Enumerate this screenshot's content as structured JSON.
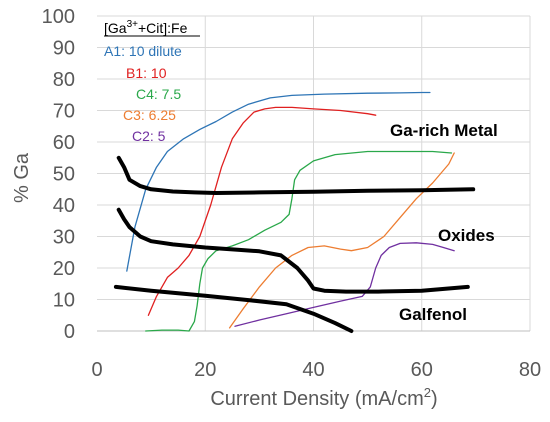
{
  "chart_data": {
    "type": "line",
    "xlabel": "Current Density (mA/cm",
    "xlabel_sup": "2",
    "xlabel_suffix": ")",
    "ylabel": "% Ga",
    "xlim": [
      0,
      80
    ],
    "ylim": [
      0,
      100
    ],
    "xticks": [
      0,
      20,
      40,
      60,
      80
    ],
    "yticks": [
      0,
      10,
      20,
      30,
      40,
      50,
      60,
      70,
      80,
      90,
      100
    ],
    "grid": true,
    "legend": {
      "title_pre": "[Ga",
      "title_sup": "3+",
      "title_post": "+Cit]:Fe",
      "placement": "top-left",
      "entries": [
        "A1: 10 dilute",
        "B1: 10",
        "C4: 7.5",
        "C3: 6.25",
        "C2: 5"
      ]
    },
    "series": [
      {
        "name": "A1: 10 dilute",
        "color": "#2e75b6",
        "x": [
          5.5,
          7,
          9,
          11,
          13,
          16,
          19,
          22,
          25,
          28,
          32,
          36,
          42,
          50,
          56,
          60,
          61.5
        ],
        "y": [
          19,
          33,
          45,
          52,
          57,
          61,
          64,
          66.5,
          69.5,
          72,
          74,
          74.8,
          75.2,
          75.5,
          75.6,
          75.7,
          75.7
        ]
      },
      {
        "name": "B1: 10",
        "color": "#e02020",
        "x": [
          9.5,
          11,
          13,
          15,
          17,
          19,
          21,
          23,
          25,
          27,
          29,
          31,
          33,
          36,
          40,
          45,
          50,
          51.5
        ],
        "y": [
          5,
          11,
          17,
          20,
          24,
          30,
          40,
          52,
          61,
          66,
          69.5,
          70.5,
          71,
          71,
          70.5,
          70,
          69,
          68.5
        ]
      },
      {
        "name": "C4: 7.5",
        "color": "#2aa84a",
        "x": [
          9,
          12,
          15,
          17,
          18,
          18.5,
          19,
          19.5,
          20.5,
          22,
          25,
          28,
          31,
          34,
          35.5,
          36,
          36.5,
          37.5,
          40,
          44,
          50,
          56,
          62,
          65.5
        ],
        "y": [
          0,
          0.3,
          0.3,
          0,
          3,
          8,
          15,
          20,
          23,
          25.5,
          27,
          29,
          32,
          34.5,
          37,
          42,
          48,
          51,
          54,
          56,
          57,
          57,
          57,
          56.5
        ]
      },
      {
        "name": "C3: 6.25",
        "color": "#ed7d31",
        "x": [
          24.5,
          27,
          30,
          33,
          36,
          39,
          42,
          45,
          47,
          50,
          53,
          56,
          59,
          62,
          65,
          66
        ],
        "y": [
          1,
          7,
          14,
          20,
          24,
          26.5,
          27,
          26,
          25.5,
          26.5,
          30,
          36,
          42,
          47,
          53,
          56.5
        ]
      },
      {
        "name": "C2: 5",
        "color": "#7030a0",
        "x": [
          25.5,
          30,
          35,
          40,
          45,
          49,
          50.5,
          51.5,
          52.5,
          54,
          56,
          59,
          62,
          64,
          66
        ],
        "y": [
          1.5,
          3.5,
          5.5,
          7.5,
          9.5,
          11,
          14,
          20,
          24,
          26.5,
          27.8,
          28,
          27.5,
          26.5,
          25.5
        ]
      },
      {
        "name": "Ga-rich Metal",
        "color": "#000000",
        "x": [
          4,
          5,
          6,
          8,
          10,
          14,
          18,
          22,
          30,
          40,
          50,
          60,
          69.5
        ],
        "y": [
          55,
          52,
          48,
          46,
          45,
          44.3,
          44,
          43.8,
          44,
          44.2,
          44.5,
          44.7,
          45
        ]
      },
      {
        "name": "Oxides",
        "color": "#000000",
        "x": [
          4,
          5,
          6,
          8,
          10,
          14,
          20,
          26,
          30,
          34,
          37,
          39,
          40,
          42,
          46,
          52,
          60,
          68.5
        ],
        "y": [
          38.5,
          35.5,
          33,
          30,
          28.5,
          27.5,
          26.5,
          25.8,
          25.3,
          24,
          20,
          16,
          13.5,
          12.8,
          12.5,
          12.5,
          12.8,
          14
        ]
      },
      {
        "name": "Galfenol",
        "color": "#000000",
        "x": [
          3.5,
          10,
          20,
          28,
          35,
          40,
          44,
          47
        ],
        "y": [
          14,
          12.8,
          11.2,
          9.8,
          8.5,
          5.5,
          2.5,
          0
        ]
      }
    ],
    "annotations": [
      "Ga-rich Metal",
      "Oxides",
      "Galfenol"
    ]
  }
}
